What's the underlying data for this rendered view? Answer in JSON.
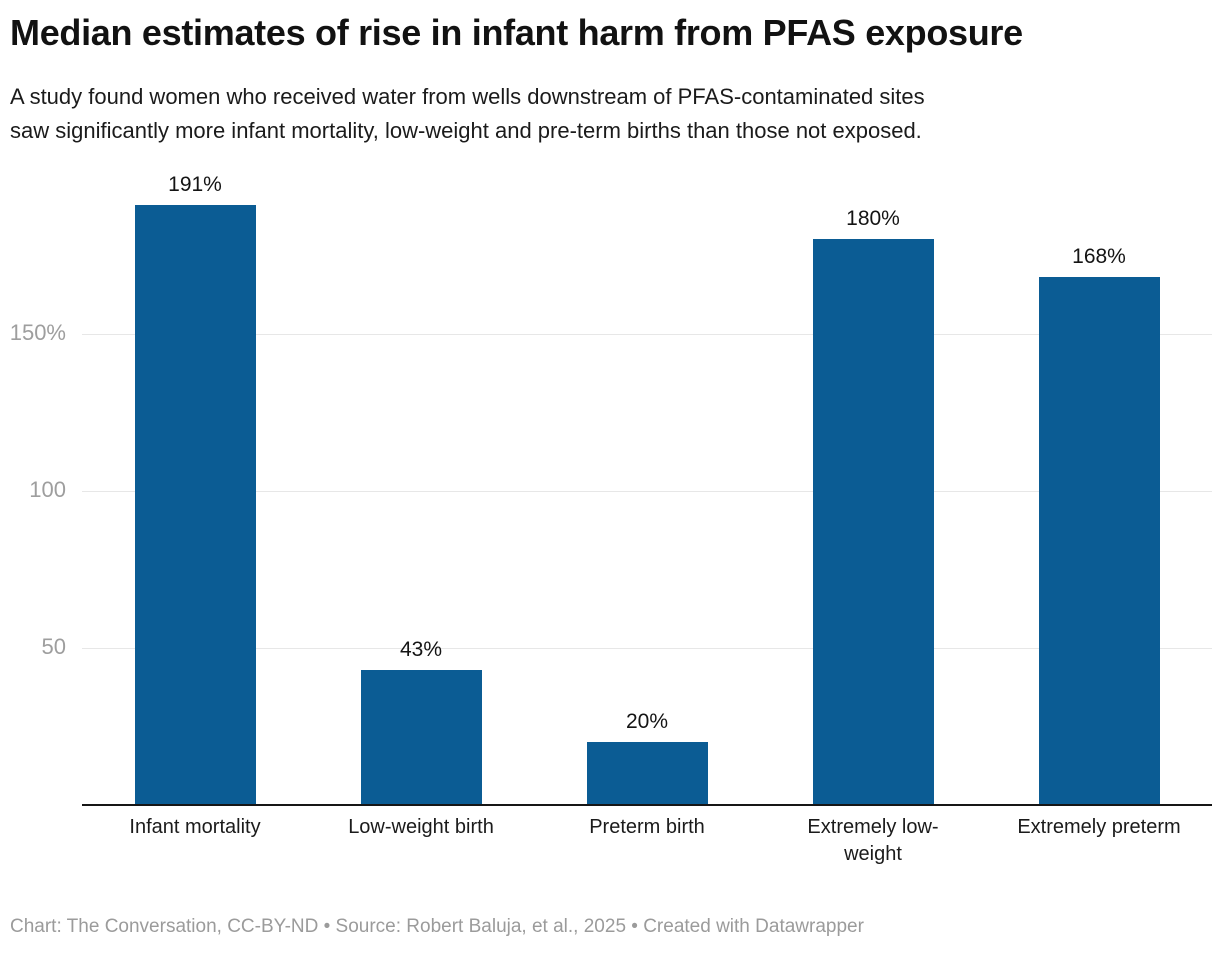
{
  "header": {
    "title": "Median estimates of rise in infant harm from PFAS exposure",
    "subtitle_lines": [
      "A study found women who received water from wells downstream of PFAS-contaminated sites",
      "saw significantly more infant mortality, low-weight and pre-term births than those not exposed."
    ]
  },
  "chart_data": {
    "type": "bar",
    "title": "Median estimates of rise in infant harm from PFAS exposure",
    "categories": [
      "Infant mortality",
      "Low-weight birth",
      "Preterm birth",
      "Extremely low-weight",
      "Extremely preterm"
    ],
    "category_label_lines": [
      [
        "Infant mortality"
      ],
      [
        "Low-weight birth"
      ],
      [
        "Preterm birth"
      ],
      [
        "Extremely low-",
        "weight"
      ],
      [
        "Extremely preterm"
      ]
    ],
    "values": [
      191,
      43,
      20,
      180,
      168
    ],
    "value_labels": [
      "191%",
      "43%",
      "20%",
      "180%",
      "168%"
    ],
    "unit": "%",
    "xlabel": "",
    "ylabel": "",
    "ylim": [
      0,
      204
    ],
    "yticks": [
      {
        "value": 50,
        "label": "50"
      },
      {
        "value": 100,
        "label": "100"
      },
      {
        "value": 150,
        "label": "150%"
      }
    ],
    "grid": true,
    "legend": "none",
    "bar_color": "#0b5c94"
  },
  "footer": {
    "attribution": "Chart: The Conversation, CC-BY-ND • Source: Robert Baluja, et al., 2025 • Created with Datawrapper"
  },
  "colors": {
    "bar": "#0b5c94",
    "gridline": "#e7e7e7",
    "axis_line": "#161616",
    "tick_label": "#9e9e9e",
    "text": "#141414",
    "category_text": "#1b1b1b",
    "footer_text": "#9b9b9b",
    "background": "#ffffff"
  }
}
